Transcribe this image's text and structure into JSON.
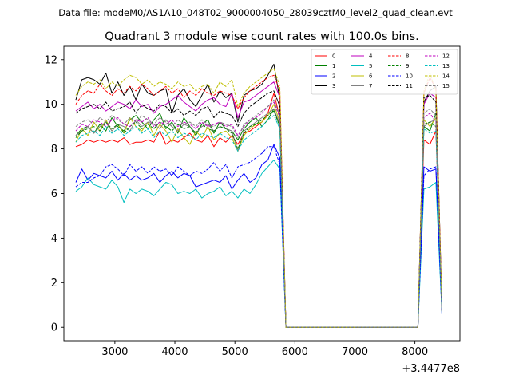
{
  "suptitle": "Data file: modeM0/AS1A10_048T02_9000004050_28039cztM0_level2_quad_clean.evt",
  "chart_data": {
    "type": "line",
    "title": "Quadrant 3 module wise count rates with 100.0s bins.",
    "xlabel": "",
    "ylabel": "",
    "x_offset_label": "+3.4477e8",
    "xlim": [
      2150,
      8750
    ],
    "ylim": [
      -0.6,
      12.6
    ],
    "xticks": [
      3000,
      4000,
      5000,
      6000,
      7000,
      8000
    ],
    "yticks": [
      0,
      2,
      4,
      6,
      8,
      10,
      12
    ],
    "x_gap_start": 5850,
    "x_gap_end": 8050,
    "legend_location": "upper-right",
    "x_active": [
      2350,
      2450,
      2550,
      2650,
      2750,
      2850,
      2950,
      3050,
      3150,
      3250,
      3350,
      3450,
      3550,
      3650,
      3750,
      3850,
      3950,
      4050,
      4150,
      4250,
      4350,
      4450,
      4550,
      4650,
      4750,
      4850,
      4950,
      5050,
      5150,
      5250,
      5350,
      5450,
      5550,
      5650,
      5750,
      5850
    ],
    "x_late": [
      8050,
      8150,
      8250,
      8350,
      8450
    ],
    "series": [
      {
        "name": "0",
        "color": "#ff0000",
        "dash": "solid",
        "active": [
          8.1,
          8.2,
          8.4,
          8.3,
          8.4,
          8.3,
          8.4,
          8.3,
          8.5,
          8.2,
          8.3,
          8.3,
          8.4,
          8.3,
          8.8,
          8.2,
          8.4,
          8.3,
          8.5,
          8.7,
          8.4,
          8.3,
          8.6,
          8.1,
          8.5,
          8.3,
          8.6,
          8.2,
          8.7,
          8.8,
          9.0,
          9.2,
          9.6,
          10.5,
          9.4,
          0.0
        ],
        "late": [
          0.0,
          8.4,
          8.2,
          8.8,
          0.7
        ]
      },
      {
        "name": "1",
        "color": "#008000",
        "dash": "solid",
        "active": [
          8.6,
          8.9,
          9.0,
          8.7,
          9.1,
          8.8,
          9.4,
          9.0,
          8.8,
          9.3,
          9.5,
          9.2,
          8.9,
          9.3,
          9.6,
          8.9,
          9.2,
          8.7,
          9.4,
          9.0,
          8.6,
          9.1,
          9.3,
          8.7,
          9.2,
          8.9,
          8.8,
          8.4,
          8.9,
          9.2,
          9.4,
          9.0,
          9.3,
          9.8,
          9.0,
          0.0
        ],
        "late": [
          0.0,
          9.0,
          8.8,
          9.6,
          0.7
        ]
      },
      {
        "name": "2",
        "color": "#0000ff",
        "dash": "solid",
        "active": [
          6.5,
          7.1,
          6.6,
          6.9,
          6.8,
          6.7,
          7.0,
          6.6,
          6.9,
          6.6,
          6.8,
          6.6,
          6.7,
          6.9,
          6.5,
          6.8,
          7.0,
          6.7,
          6.9,
          6.8,
          6.3,
          6.4,
          6.5,
          6.6,
          6.5,
          6.8,
          6.2,
          6.6,
          6.9,
          6.5,
          6.7,
          7.3,
          7.5,
          8.2,
          7.6,
          0.0
        ],
        "late": [
          0.0,
          7.2,
          7.0,
          7.1,
          0.6
        ]
      },
      {
        "name": "3",
        "color": "#000000",
        "dash": "solid",
        "active": [
          10.2,
          11.1,
          11.2,
          11.1,
          10.9,
          11.4,
          10.5,
          11.0,
          10.4,
          10.8,
          10.2,
          10.9,
          10.5,
          10.4,
          10.6,
          10.7,
          9.6,
          10.4,
          10.7,
          10.2,
          9.9,
          10.4,
          10.9,
          10.1,
          10.6,
          10.3,
          10.5,
          9.2,
          10.4,
          10.6,
          10.7,
          10.9,
          11.3,
          11.8,
          10.2,
          0.0
        ],
        "late": [
          0.0,
          10.1,
          10.6,
          10.8,
          0.8
        ]
      },
      {
        "name": "4",
        "color": "#bf00bf",
        "dash": "solid",
        "active": [
          9.7,
          9.9,
          10.1,
          9.8,
          10.0,
          9.7,
          9.9,
          10.1,
          10.0,
          9.8,
          10.2,
          9.9,
          10.0,
          9.6,
          9.9,
          10.0,
          10.2,
          10.4,
          10.1,
          9.9,
          9.7,
          10.0,
          10.2,
          10.3,
          10.0,
          9.9,
          10.5,
          9.4,
          10.1,
          10.2,
          10.4,
          10.6,
          10.8,
          11.0,
          10.3,
          0.0
        ],
        "late": [
          0.0,
          10.0,
          10.5,
          10.3,
          0.7
        ]
      },
      {
        "name": "5",
        "color": "#00bfbf",
        "dash": "solid",
        "active": [
          6.1,
          6.3,
          6.7,
          6.4,
          6.3,
          6.2,
          6.6,
          6.3,
          5.6,
          6.2,
          6.0,
          6.2,
          6.1,
          5.9,
          6.2,
          6.5,
          6.4,
          6.0,
          6.1,
          6.0,
          6.2,
          5.8,
          6.0,
          6.1,
          6.3,
          5.9,
          6.1,
          5.8,
          6.2,
          6.0,
          6.4,
          6.9,
          7.2,
          7.5,
          7.1,
          0.0
        ],
        "late": [
          0.0,
          6.2,
          6.3,
          6.5,
          0.6
        ]
      },
      {
        "name": "6",
        "color": "#bfbf00",
        "dash": "solid",
        "active": [
          8.3,
          8.9,
          8.6,
          9.2,
          8.8,
          9.3,
          8.8,
          9.1,
          8.7,
          9.4,
          9.0,
          8.8,
          9.2,
          8.6,
          9.1,
          8.8,
          8.3,
          8.9,
          8.5,
          8.2,
          8.8,
          8.5,
          9.0,
          8.4,
          8.7,
          8.8,
          8.5,
          7.9,
          8.6,
          8.9,
          9.1,
          9.2,
          9.5,
          10.0,
          9.2,
          0.0
        ],
        "late": [
          0.0,
          9.3,
          9.0,
          9.4,
          0.7
        ]
      },
      {
        "name": "7",
        "color": "#808080",
        "dash": "solid",
        "active": [
          8.6,
          8.8,
          9.0,
          8.7,
          9.0,
          9.2,
          8.8,
          9.1,
          9.0,
          8.8,
          9.3,
          9.0,
          9.2,
          9.1,
          8.9,
          9.3,
          9.0,
          8.8,
          9.1,
          9.0,
          8.7,
          9.0,
          9.1,
          8.8,
          9.0,
          8.9,
          8.8,
          7.9,
          8.8,
          9.0,
          9.2,
          9.4,
          9.6,
          9.8,
          9.1,
          0.0
        ],
        "late": [
          0.0,
          9.0,
          9.2,
          9.3,
          0.7
        ]
      },
      {
        "name": "8",
        "color": "#ff0000",
        "dash": "dashed",
        "active": [
          10.0,
          10.4,
          10.6,
          10.5,
          10.9,
          10.6,
          10.4,
          10.7,
          10.5,
          10.8,
          10.6,
          10.9,
          10.7,
          10.4,
          10.6,
          10.8,
          10.5,
          10.7,
          10.3,
          10.6,
          10.4,
          10.7,
          10.5,
          10.4,
          10.6,
          10.5,
          10.4,
          9.8,
          10.3,
          10.6,
          10.8,
          11.0,
          11.2,
          11.3,
          10.6,
          0.0
        ],
        "late": [
          0.0,
          10.5,
          11.2,
          10.7,
          0.8
        ]
      },
      {
        "name": "9",
        "color": "#008000",
        "dash": "dashed",
        "active": [
          8.5,
          8.8,
          8.9,
          9.0,
          8.8,
          9.2,
          8.9,
          9.1,
          8.7,
          9.0,
          9.2,
          8.9,
          9.1,
          8.9,
          9.2,
          9.0,
          8.8,
          9.1,
          8.9,
          9.0,
          8.7,
          9.1,
          8.9,
          8.8,
          9.0,
          8.9,
          8.7,
          8.0,
          8.7,
          9.0,
          9.1,
          9.3,
          9.5,
          9.7,
          9.0,
          0.0
        ],
        "late": [
          0.0,
          9.1,
          9.2,
          9.0,
          0.7
        ]
      },
      {
        "name": "10",
        "color": "#0000ff",
        "dash": "dashed",
        "active": [
          6.3,
          6.5,
          6.5,
          6.7,
          6.8,
          7.2,
          7.3,
          7.1,
          6.8,
          7.3,
          7.0,
          7.2,
          6.9,
          7.2,
          7.0,
          7.1,
          6.8,
          7.2,
          7.0,
          6.8,
          7.0,
          6.9,
          7.1,
          7.4,
          7.0,
          7.3,
          6.7,
          7.2,
          7.3,
          7.4,
          7.6,
          7.8,
          8.1,
          8.1,
          7.3,
          0.0
        ],
        "late": [
          0.0,
          6.8,
          7.1,
          7.2,
          0.6
        ]
      },
      {
        "name": "11",
        "color": "#000000",
        "dash": "dashed",
        "active": [
          9.6,
          9.8,
          9.9,
          10.0,
          9.8,
          10.1,
          9.7,
          9.8,
          9.9,
          10.1,
          9.6,
          10.0,
          9.8,
          9.7,
          10.0,
          9.9,
          9.6,
          9.8,
          9.5,
          9.7,
          9.5,
          9.8,
          9.9,
          9.4,
          9.7,
          9.6,
          9.5,
          9.0,
          9.6,
          9.9,
          10.1,
          10.3,
          10.5,
          10.6,
          9.9,
          0.0
        ],
        "late": [
          0.0,
          10.3,
          10.4,
          10.1,
          0.7
        ]
      },
      {
        "name": "12",
        "color": "#bf00bf",
        "dash": "dashed",
        "active": [
          8.8,
          9.1,
          9.0,
          9.3,
          9.2,
          9.0,
          9.3,
          9.4,
          9.1,
          9.0,
          9.3,
          9.2,
          9.4,
          9.0,
          9.2,
          9.1,
          9.3,
          9.0,
          9.2,
          9.1,
          8.9,
          9.2,
          9.0,
          9.1,
          9.2,
          9.0,
          9.1,
          8.6,
          9.0,
          9.3,
          9.4,
          9.6,
          9.9,
          10.1,
          9.4,
          0.0
        ],
        "late": [
          0.0,
          9.4,
          9.6,
          9.2,
          0.7
        ]
      },
      {
        "name": "13",
        "color": "#00bfbf",
        "dash": "dashed",
        "active": [
          8.3,
          8.6,
          8.7,
          8.8,
          8.6,
          9.0,
          8.7,
          8.9,
          8.6,
          8.8,
          9.0,
          8.7,
          8.9,
          8.5,
          8.8,
          8.6,
          8.8,
          8.5,
          8.7,
          8.6,
          8.4,
          8.7,
          8.6,
          8.5,
          8.7,
          8.5,
          8.4,
          7.9,
          8.4,
          8.6,
          8.8,
          9.0,
          9.3,
          9.5,
          8.9,
          0.0
        ],
        "late": [
          0.0,
          8.9,
          8.7,
          8.8,
          0.7
        ]
      },
      {
        "name": "14",
        "color": "#bfbf00",
        "dash": "dashed",
        "active": [
          10.4,
          10.8,
          11.0,
          10.9,
          11.1,
          10.7,
          11.0,
          10.8,
          11.1,
          11.3,
          11.2,
          10.9,
          11.1,
          10.8,
          11.0,
          10.9,
          10.7,
          11.0,
          10.8,
          10.9,
          10.6,
          10.8,
          10.9,
          10.5,
          11.0,
          10.8,
          11.1,
          9.9,
          10.5,
          10.8,
          11.0,
          11.2,
          11.4,
          11.6,
          10.8,
          0.0
        ],
        "late": [
          0.0,
          10.6,
          11.4,
          10.6,
          0.8
        ]
      },
      {
        "name": "15",
        "color": "#808080",
        "dash": "dashed",
        "active": [
          9.0,
          9.2,
          9.3,
          9.1,
          9.4,
          9.2,
          9.5,
          9.3,
          9.1,
          9.4,
          9.2,
          9.5,
          9.3,
          9.1,
          9.4,
          9.2,
          9.0,
          9.3,
          9.1,
          9.2,
          9.0,
          9.3,
          9.1,
          9.0,
          9.2,
          9.1,
          9.0,
          8.5,
          9.1,
          9.3,
          9.5,
          9.7,
          9.9,
          10.2,
          9.5,
          0.0
        ],
        "late": [
          0.0,
          9.6,
          9.8,
          9.5,
          0.7
        ]
      }
    ]
  }
}
